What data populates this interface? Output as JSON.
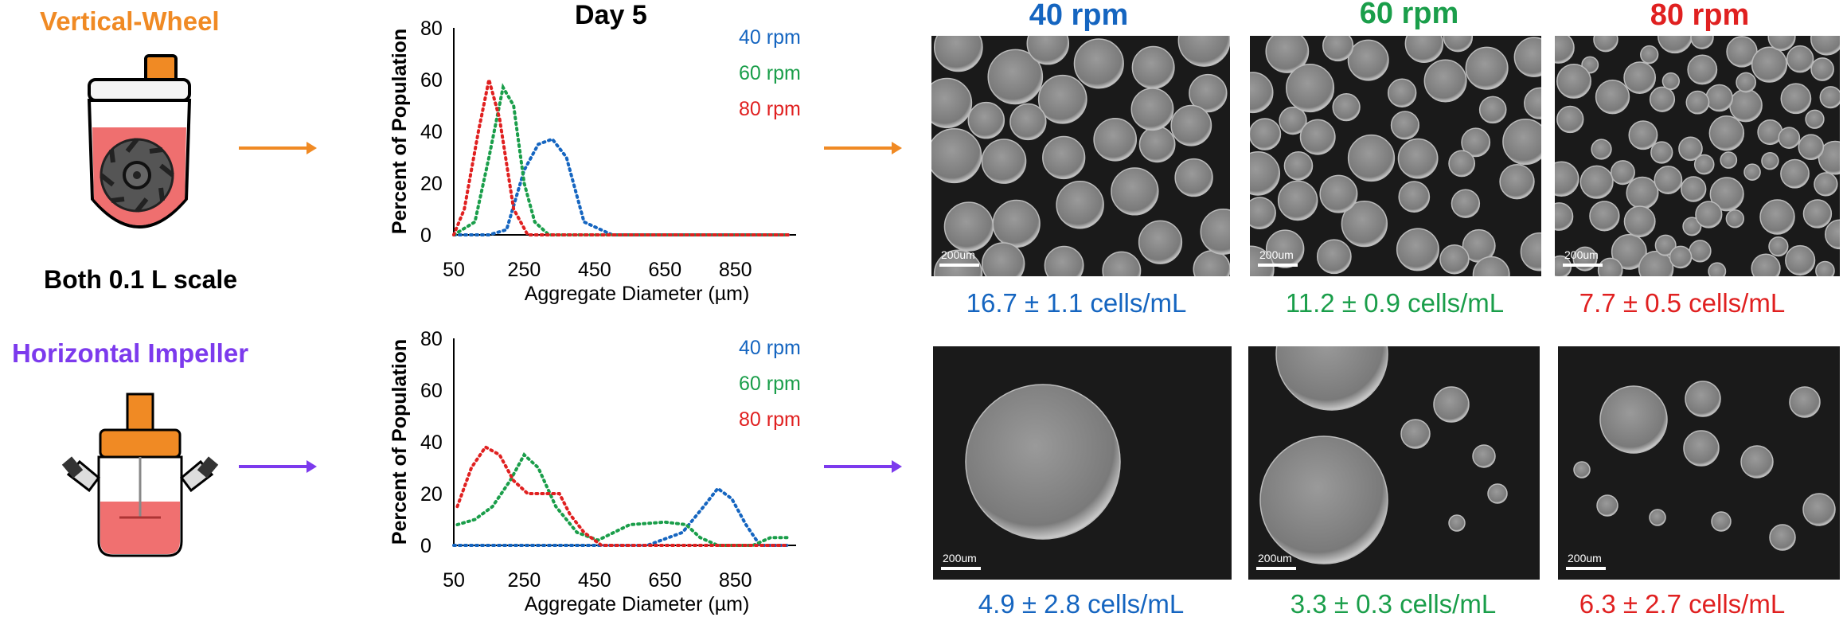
{
  "left": {
    "vertical_label": "Vertical-Wheel",
    "scale_label": "Both 0.1 L scale",
    "horizontal_label": "Horizontal Impeller"
  },
  "colors": {
    "orange": "#f08a24",
    "purple": "#7c3aed",
    "rpm40": "#1565c0",
    "rpm60": "#1a9e4a",
    "rpm80": "#e02020"
  },
  "images": {
    "headers": [
      "40 rpm",
      "60 rpm",
      "80 rpm"
    ],
    "top_counts": [
      "16.7 ± 1.1 cells/mL",
      "11.2 ± 0.9 cells/mL",
      "7.7 ± 0.5 cells/mL"
    ],
    "bottom_counts": [
      "4.9 ± 2.8 cells/mL",
      "3.3 ± 0.3 cells/mL",
      "6.3 ± 2.7 cells/mL"
    ],
    "scale_bar_label": "200um"
  },
  "chart_data": [
    {
      "type": "line",
      "title": "Day 5",
      "xlabel": "Aggregate Diameter (µm)",
      "ylabel": "Percent of Population",
      "xlim": [
        50,
        1000
      ],
      "ylim": [
        0,
        80
      ],
      "xticks": [
        "50",
        "250",
        "450",
        "650",
        "850"
      ],
      "yticks": [
        "0",
        "20",
        "40",
        "60",
        "80"
      ],
      "legend": "top-right",
      "series": [
        {
          "name": "40 rpm",
          "color": "#1565c0",
          "x": [
            50,
            150,
            200,
            250,
            290,
            330,
            370,
            420,
            500,
            1000
          ],
          "y": [
            0,
            0,
            2,
            25,
            35,
            37,
            30,
            5,
            0,
            0
          ]
        },
        {
          "name": "60 rpm",
          "color": "#1a9e4a",
          "x": [
            50,
            110,
            150,
            190,
            220,
            250,
            280,
            320,
            1000
          ],
          "y": [
            0,
            5,
            30,
            57,
            50,
            20,
            5,
            0,
            0
          ]
        },
        {
          "name": "80 rpm",
          "color": "#e02020",
          "x": [
            50,
            80,
            120,
            150,
            180,
            220,
            260,
            1000
          ],
          "y": [
            0,
            10,
            40,
            60,
            45,
            10,
            0,
            0
          ]
        }
      ]
    },
    {
      "type": "line",
      "title": "",
      "xlabel": "Aggregate Diameter (µm)",
      "ylabel": "Percent of Population",
      "xlim": [
        50,
        1000
      ],
      "ylim": [
        0,
        80
      ],
      "xticks": [
        "50",
        "250",
        "450",
        "650",
        "850"
      ],
      "yticks": [
        "0",
        "20",
        "40",
        "60",
        "80"
      ],
      "legend": "top-right",
      "series": [
        {
          "name": "40 rpm",
          "color": "#1565c0",
          "x": [
            50,
            600,
            700,
            760,
            800,
            840,
            880,
            920,
            1000
          ],
          "y": [
            0,
            0,
            5,
            15,
            22,
            18,
            8,
            0,
            0
          ]
        },
        {
          "name": "60 rpm",
          "color": "#1a9e4a",
          "x": [
            60,
            110,
            160,
            210,
            250,
            290,
            340,
            400,
            460,
            550,
            650,
            710,
            750,
            800,
            850,
            900,
            950,
            1000
          ],
          "y": [
            8,
            10,
            15,
            25,
            35,
            30,
            15,
            5,
            2,
            8,
            9,
            8,
            3,
            0,
            0,
            0,
            3,
            3
          ]
        },
        {
          "name": "80 rpm",
          "color": "#e02020",
          "x": [
            60,
            100,
            140,
            180,
            220,
            260,
            300,
            350,
            380,
            420,
            470,
            1000
          ],
          "y": [
            15,
            30,
            38,
            35,
            25,
            20,
            20,
            20,
            12,
            5,
            0,
            0
          ]
        }
      ]
    }
  ]
}
